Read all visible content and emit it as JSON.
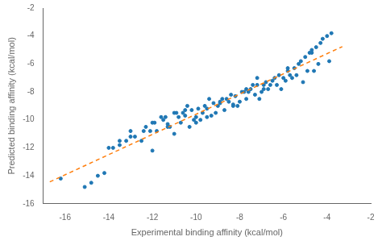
{
  "chart_data": {
    "type": "scatter",
    "x_label": "Experimental binding affinity (kcal/mol)",
    "y_label": "Predicted binding affinity (kcal/mol)",
    "xlim": [
      -17,
      -2
    ],
    "ylim": [
      -16,
      -2
    ],
    "xticks": [
      -16,
      -14,
      -12,
      -10,
      -8,
      -6,
      -4,
      -2
    ],
    "yticks": [
      -2,
      -4,
      -6,
      -8,
      -10,
      -12,
      -14,
      -16
    ],
    "grid": false,
    "series": [
      {
        "type": "scatter",
        "color": "#1f77b4",
        "marker": "circle",
        "x": [
          -16.2,
          -15.1,
          -14.8,
          -14.5,
          -14.2,
          -13.8,
          -13.5,
          -13.2,
          -13.0,
          -12.8,
          -12.5,
          -12.3,
          -12.0,
          -11.8,
          -11.5,
          -11.3,
          -11.0,
          -10.8,
          -10.7,
          -10.5,
          -10.3,
          -10.2,
          -10.0,
          -9.8,
          -9.7,
          -9.5,
          -9.3,
          -9.2,
          -9.0,
          -8.8,
          -8.7,
          -8.5,
          -8.3,
          -8.2,
          -8.0,
          -7.8,
          -7.7,
          -7.5,
          -7.3,
          -7.2,
          -7.0,
          -6.8,
          -6.7,
          -6.5,
          -6.3,
          -6.2,
          -6.0,
          -5.8,
          -5.7,
          -5.5,
          -5.3,
          -5.2,
          -5.0,
          -4.8,
          -4.7,
          -4.5,
          -4.3,
          -4.2,
          -4.0,
          -3.8,
          -12.1,
          -11.6,
          -11.2,
          -10.6,
          -10.1,
          -9.6,
          -9.1,
          -8.6,
          -8.1,
          -7.6,
          -7.1,
          -6.6,
          -6.1,
          -5.6,
          -5.1,
          -4.6,
          -13.0,
          -12.4,
          -11.9,
          -11.4,
          -10.9,
          -10.4,
          -9.9,
          -9.4,
          -8.9,
          -8.4,
          -7.9,
          -7.4,
          -6.9,
          -6.4,
          -5.9,
          -5.4,
          -4.9,
          -4.4,
          -3.9,
          -14.0,
          -13.5,
          -12.0,
          -11.0,
          -10.0,
          -9.5,
          -8.3,
          -7.7,
          -6.9,
          -5.8,
          -4.7,
          -11.3,
          -10.5,
          -8.9,
          -7.2
        ],
        "values": [
          -14.2,
          -14.8,
          -14.5,
          -14.0,
          -13.8,
          -12.0,
          -11.8,
          -11.5,
          -10.8,
          -11.2,
          -11.5,
          -10.5,
          -10.2,
          -10.8,
          -10.0,
          -10.3,
          -9.5,
          -9.8,
          -10.2,
          -9.7,
          -10.5,
          -9.3,
          -9.8,
          -10.0,
          -9.5,
          -9.2,
          -9.7,
          -8.8,
          -9.0,
          -8.5,
          -9.3,
          -8.7,
          -9.0,
          -8.3,
          -8.7,
          -8.0,
          -8.5,
          -7.8,
          -8.2,
          -7.5,
          -8.0,
          -7.3,
          -7.8,
          -7.2,
          -7.5,
          -6.8,
          -7.0,
          -6.5,
          -6.8,
          -6.3,
          -6.0,
          -5.8,
          -5.5,
          -5.2,
          -5.0,
          -4.8,
          -4.5,
          -4.2,
          -4.0,
          -3.8,
          -10.8,
          -9.8,
          -10.5,
          -9.5,
          -10.0,
          -9.0,
          -9.5,
          -8.5,
          -9.0,
          -8.0,
          -8.5,
          -7.5,
          -7.8,
          -7.0,
          -7.3,
          -6.5,
          -11.2,
          -10.8,
          -10.2,
          -9.8,
          -9.5,
          -9.0,
          -9.2,
          -8.5,
          -8.8,
          -8.2,
          -8.0,
          -7.5,
          -7.8,
          -7.0,
          -7.2,
          -6.8,
          -6.5,
          -6.0,
          -5.8,
          -12.0,
          -11.5,
          -12.2,
          -11.0,
          -10.2,
          -9.8,
          -8.9,
          -7.8,
          -7.5,
          -6.3,
          -5.2,
          -10.5,
          -9.3,
          -8.7,
          -7.0
        ]
      },
      {
        "type": "line",
        "color": "#ff7f0e",
        "line_style": "dashed",
        "x": [
          -16.7,
          -3.3
        ],
        "values": [
          -14.437,
          -4.757
        ]
      }
    ]
  }
}
